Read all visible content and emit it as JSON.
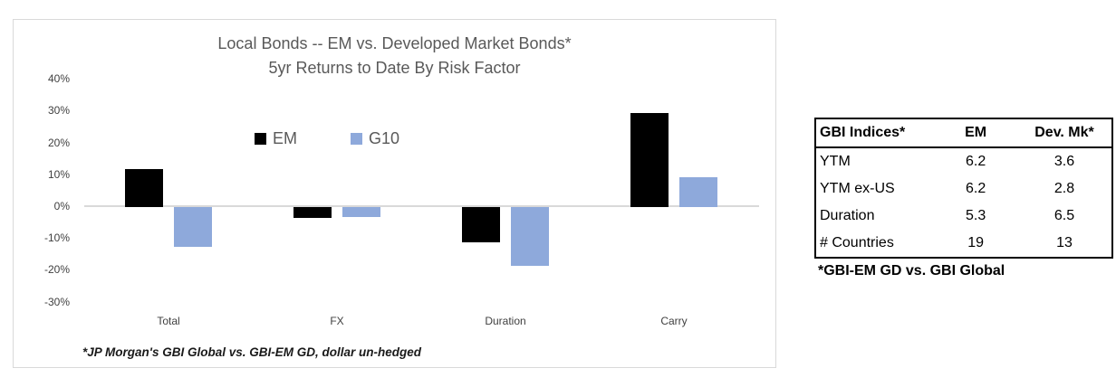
{
  "chart": {
    "title_line1": "Local Bonds -- EM vs. Developed Market Bonds*",
    "title_line2": "5yr Returns to Date By Risk Factor",
    "footnote": "*JP Morgan's GBI Global vs. GBI-EM GD, dollar un-hedged"
  },
  "chart_data": {
    "type": "bar",
    "title": "Local Bonds -- EM vs. Developed Market Bonds*",
    "subtitle": "5yr Returns to Date By Risk Factor",
    "categories": [
      "Total",
      "FX",
      "Duration",
      "Carry"
    ],
    "series": [
      {
        "name": "EM",
        "color": "#000000",
        "values": [
          12,
          -3.5,
          -11,
          29.5
        ]
      },
      {
        "name": "G10",
        "color": "#8ea9db",
        "values": [
          -12.5,
          -3,
          -18.5,
          9.5
        ]
      }
    ],
    "xlabel": "",
    "ylabel": "",
    "ylim": [
      -30,
      40
    ],
    "ytick_step": 10,
    "ytick_suffix": "%",
    "grid": false,
    "legend_position": "inside-top-center"
  },
  "table": {
    "headers": [
      "GBI Indices*",
      "EM",
      "Dev. Mk*"
    ],
    "rows": [
      [
        "YTM",
        "6.2",
        "3.6"
      ],
      [
        "YTM ex-US",
        "6.2",
        "2.8"
      ],
      [
        "Duration",
        "5.3",
        "6.5"
      ],
      [
        "# Countries",
        "19",
        "13"
      ]
    ],
    "footnote": "*GBI-EM GD vs. GBI Global"
  },
  "colors": {
    "em_bar": "#000000",
    "g10_bar": "#8ea9db",
    "axis_line": "#d9d9d9",
    "chart_border": "#d9d9d9",
    "title_text": "#595959",
    "tick_text": "#404040",
    "table_border": "#000000"
  }
}
